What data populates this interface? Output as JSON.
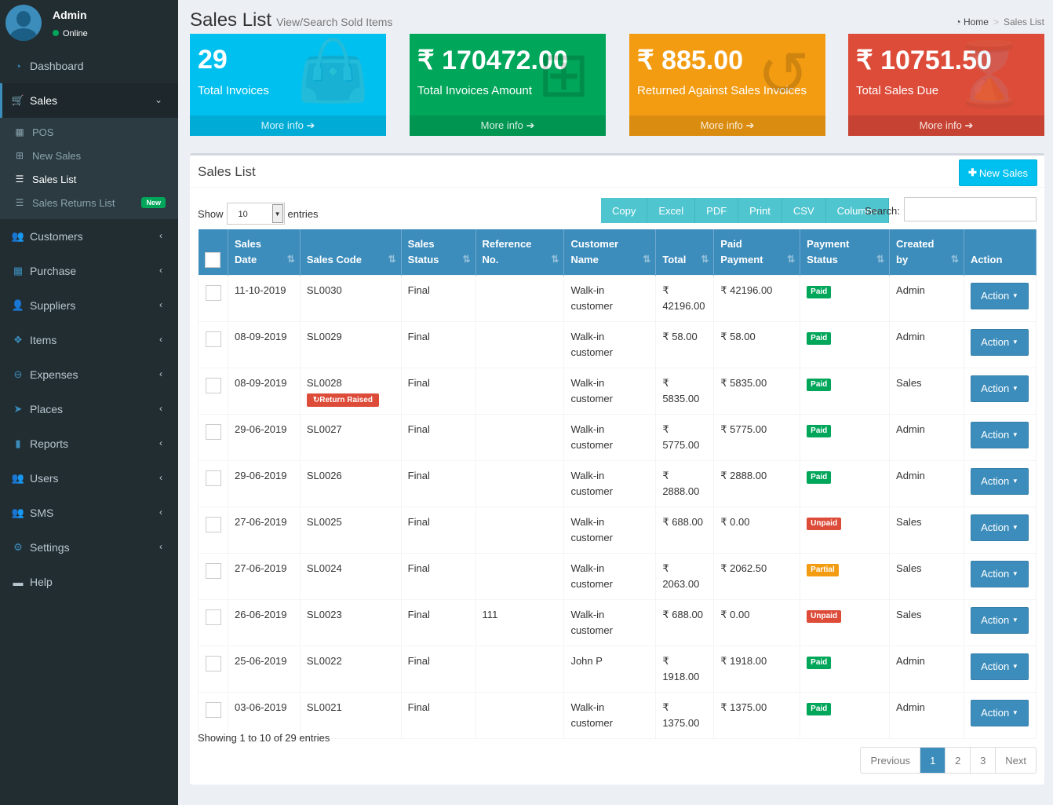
{
  "user": {
    "name": "Admin",
    "status": "Online"
  },
  "sidebar": {
    "dashboard": "Dashboard",
    "sales": "Sales",
    "sales_sub": [
      "POS",
      "New Sales",
      "Sales List",
      "Sales Returns List"
    ],
    "new_badge": "New",
    "customers": "Customers",
    "purchase": "Purchase",
    "suppliers": "Suppliers",
    "items": "Items",
    "expenses": "Expenses",
    "places": "Places",
    "reports": "Reports",
    "users": "Users",
    "sms": "SMS",
    "settings": "Settings",
    "help": "Help"
  },
  "header": {
    "title": "Sales List",
    "subtitle": "View/Search Sold Items"
  },
  "breadcrumb": {
    "home": "Home",
    "current": "Sales List"
  },
  "boxes": [
    {
      "value": "29",
      "label": "Total Invoices",
      "footer": "More info",
      "color": "#00c0ef"
    },
    {
      "value": "₹ 170472.00",
      "label": "Total Invoices Amount",
      "footer": "More info",
      "color": "#00a65a"
    },
    {
      "value": "₹ 885.00",
      "label": "Returned Against Sales Invoices",
      "footer": "More info",
      "color": "#f39c12"
    },
    {
      "value": "₹ 10751.50",
      "label": "Total Sales Due",
      "footer": "More info",
      "color": "#dd4b39"
    }
  ],
  "panel": {
    "title": "Sales List",
    "new_button": "New Sales",
    "show_label": "Show",
    "entries_value": "10",
    "entries_label": "entries",
    "export_buttons": [
      "Copy",
      "Excel",
      "PDF",
      "Print",
      "CSV",
      "Columns"
    ],
    "search_label": "Search:"
  },
  "table": {
    "headers": [
      "Sales Date",
      "Sales Code",
      "Sales Status",
      "Reference No.",
      "Customer Name",
      "Total",
      "Paid Payment",
      "Payment Status",
      "Created by",
      "Action"
    ],
    "header_lines": [
      [
        "Sales",
        "Date"
      ],
      [
        "Sales Code"
      ],
      [
        "Sales",
        "Status"
      ],
      [
        "Reference",
        "No."
      ],
      [
        "Customer",
        "Name"
      ],
      [
        "Total"
      ],
      [
        "Paid",
        "Payment"
      ],
      [
        "Payment",
        "Status"
      ],
      [
        "Created",
        "by"
      ],
      [
        "Action"
      ]
    ],
    "return_label": "Return Raised",
    "action_label": "Action",
    "rows": [
      {
        "date": "11-10-2019",
        "code": "SL0030",
        "status": "Final",
        "ref": "",
        "customer": "Walk-in customer",
        "total": "₹ 42196.00",
        "paid": "₹ 42196.00",
        "pstatus": "Paid",
        "by": "Admin"
      },
      {
        "date": "08-09-2019",
        "code": "SL0029",
        "status": "Final",
        "ref": "",
        "customer": "Walk-in customer",
        "total": "₹ 58.00",
        "paid": "₹ 58.00",
        "pstatus": "Paid",
        "by": "Admin"
      },
      {
        "date": "08-09-2019",
        "code": "SL0028",
        "status": "Final",
        "ref": "",
        "customer": "Walk-in customer",
        "total": "₹ 5835.00",
        "paid": "₹ 5835.00",
        "pstatus": "Paid",
        "by": "Sales",
        "returned": true
      },
      {
        "date": "29-06-2019",
        "code": "SL0027",
        "status": "Final",
        "ref": "",
        "customer": "Walk-in customer",
        "total": "₹ 5775.00",
        "paid": "₹ 5775.00",
        "pstatus": "Paid",
        "by": "Admin"
      },
      {
        "date": "29-06-2019",
        "code": "SL0026",
        "status": "Final",
        "ref": "",
        "customer": "Walk-in customer",
        "total": "₹ 2888.00",
        "paid": "₹ 2888.00",
        "pstatus": "Paid",
        "by": "Admin"
      },
      {
        "date": "27-06-2019",
        "code": "SL0025",
        "status": "Final",
        "ref": "",
        "customer": "Walk-in customer",
        "total": "₹ 688.00",
        "paid": "₹ 0.00",
        "pstatus": "Unpaid",
        "by": "Sales"
      },
      {
        "date": "27-06-2019",
        "code": "SL0024",
        "status": "Final",
        "ref": "",
        "customer": "Walk-in customer",
        "total": "₹ 2063.00",
        "paid": "₹ 2062.50",
        "pstatus": "Partial",
        "by": "Sales"
      },
      {
        "date": "26-06-2019",
        "code": "SL0023",
        "status": "Final",
        "ref": "111",
        "customer": "Walk-in customer",
        "total": "₹ 688.00",
        "paid": "₹ 0.00",
        "pstatus": "Unpaid",
        "by": "Sales"
      },
      {
        "date": "25-06-2019",
        "code": "SL0022",
        "status": "Final",
        "ref": "",
        "customer": "John P",
        "total": "₹ 1918.00",
        "paid": "₹ 1918.00",
        "pstatus": "Paid",
        "by": "Admin"
      },
      {
        "date": "03-06-2019",
        "code": "SL0021",
        "status": "Final",
        "ref": "",
        "customer": "Walk-in customer",
        "total": "₹ 1375.00",
        "paid": "₹ 1375.00",
        "pstatus": "Paid",
        "by": "Admin"
      }
    ]
  },
  "footer": {
    "info": "Showing 1 to 10 of 29 entries",
    "pages": [
      "Previous",
      "1",
      "2",
      "3",
      "Next"
    ]
  }
}
